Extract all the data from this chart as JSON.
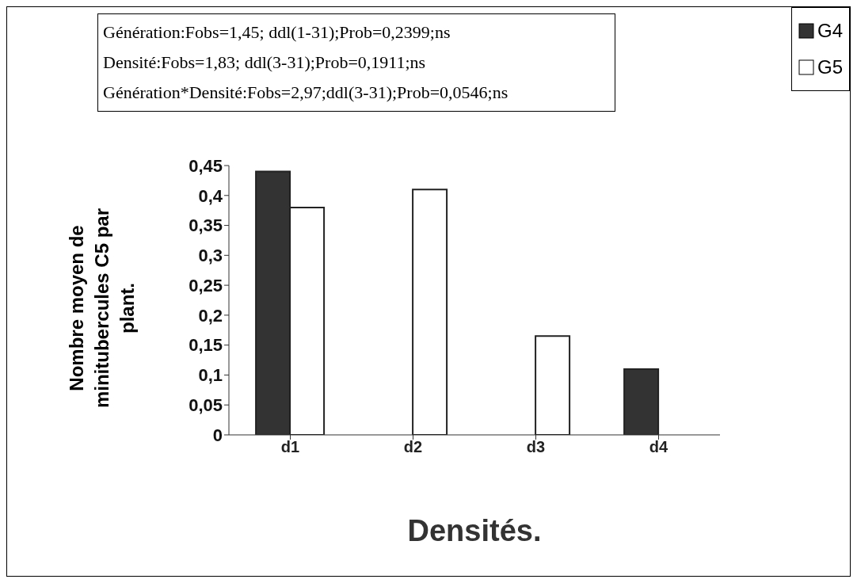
{
  "chart_data": {
    "type": "bar",
    "xlabel": "Densités.",
    "ylabel": "Nombre moyen de minitubercules C5 par plant.",
    "categories": [
      "d1",
      "d2",
      "d3",
      "d4"
    ],
    "series": [
      {
        "name": "G4",
        "color": "#333333",
        "values": [
          0.44,
          0,
          0,
          0.11
        ]
      },
      {
        "name": "G5",
        "color": "#ffffff",
        "values": [
          0.38,
          0.41,
          0.165,
          0
        ]
      }
    ],
    "ylim": [
      0,
      0.45
    ],
    "yticks": [
      {
        "value": 0,
        "label": "0"
      },
      {
        "value": 0.05,
        "label": "0,05"
      },
      {
        "value": 0.1,
        "label": "0,1"
      },
      {
        "value": 0.15,
        "label": "0,15"
      },
      {
        "value": 0.2,
        "label": "0,2"
      },
      {
        "value": 0.25,
        "label": "0,25"
      },
      {
        "value": 0.3,
        "label": "0,3"
      },
      {
        "value": 0.35,
        "label": "0,35"
      },
      {
        "value": 0.4,
        "label": "0,4"
      },
      {
        "value": 0.45,
        "label": "0,45"
      }
    ],
    "annotations": [
      "Génération:Fobs=1,45; ddl(1-31);Prob=0,2399;ns",
      "Densité:Fobs=1,83; ddl(3-31);Prob=0,1911;ns",
      "Génération*Densité:Fobs=2,97;ddl(3-31);Prob=0,0546;ns"
    ],
    "legend": "top right",
    "grid": false
  }
}
